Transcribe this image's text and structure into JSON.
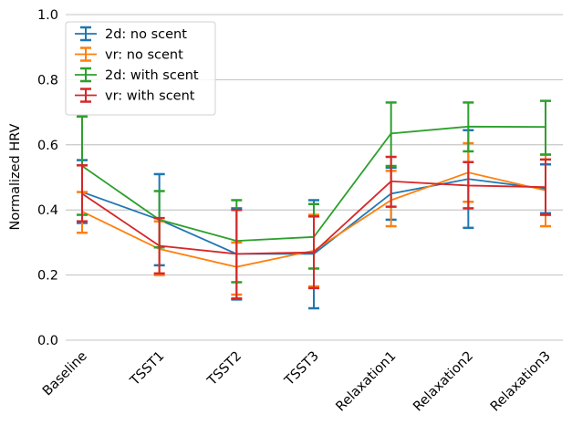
{
  "chart_data": {
    "type": "line",
    "title": "",
    "xlabel": "",
    "ylabel": "Normalized HRV",
    "ylim": [
      0.0,
      1.0
    ],
    "yticks": [
      "0.0",
      "0.2",
      "0.4",
      "0.6",
      "0.8",
      "1.0"
    ],
    "grid": "horizontal",
    "legend_position": "top-left",
    "categories": [
      "Baseline",
      "TSST1",
      "TSST2",
      "TSST3",
      "Relaxation1",
      "Relaxation2",
      "Relaxation3"
    ],
    "series": [
      {
        "name": "2d: no scent",
        "color": "#1f77b4",
        "values": [
          0.455,
          0.37,
          0.265,
          0.265,
          0.45,
          0.495,
          0.465
        ],
        "lower": [
          0.36,
          0.23,
          0.125,
          0.098,
          0.37,
          0.345,
          0.39
        ],
        "upper": [
          0.553,
          0.51,
          0.405,
          0.43,
          0.53,
          0.645,
          0.54
        ]
      },
      {
        "name": "vr: no scent",
        "color": "#ff7f0e",
        "values": [
          0.395,
          0.28,
          0.225,
          0.275,
          0.43,
          0.515,
          0.46
        ],
        "lower": [
          0.33,
          0.2,
          0.14,
          0.165,
          0.35,
          0.425,
          0.35
        ],
        "upper": [
          0.455,
          0.365,
          0.3,
          0.385,
          0.52,
          0.605,
          0.57
        ]
      },
      {
        "name": "2d: with scent",
        "color": "#2ca02c",
        "values": [
          0.535,
          0.37,
          0.305,
          0.317,
          0.635,
          0.656,
          0.655
        ],
        "lower": [
          0.385,
          0.285,
          0.178,
          0.22,
          0.535,
          0.58,
          0.57
        ],
        "upper": [
          0.687,
          0.458,
          0.43,
          0.418,
          0.73,
          0.73,
          0.735
        ]
      },
      {
        "name": "vr: with scent",
        "color": "#d62728",
        "values": [
          0.45,
          0.29,
          0.265,
          0.27,
          0.488,
          0.475,
          0.47
        ],
        "lower": [
          0.365,
          0.205,
          0.128,
          0.16,
          0.41,
          0.405,
          0.385
        ],
        "upper": [
          0.537,
          0.375,
          0.4,
          0.38,
          0.563,
          0.547,
          0.555
        ]
      }
    ]
  }
}
